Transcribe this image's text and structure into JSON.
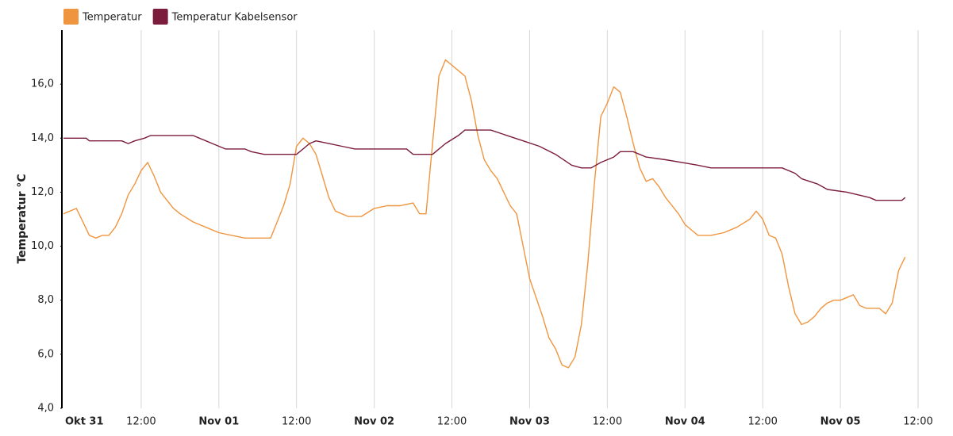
{
  "chart_data": {
    "type": "line",
    "ylabel": "Temperatur °C",
    "legend": "top-left",
    "grid": true,
    "xlim": [
      0,
      132
    ],
    "xticks": [
      {
        "value": 0,
        "label": "Okt 31"
      },
      {
        "value": 12,
        "label": "12:00"
      },
      {
        "value": 24,
        "label": "Nov 01"
      },
      {
        "value": 36,
        "label": "12:00"
      },
      {
        "value": 48,
        "label": "Nov 02"
      },
      {
        "value": 60,
        "label": "12:00"
      },
      {
        "value": 72,
        "label": "Nov 03"
      },
      {
        "value": 84,
        "label": "12:00"
      },
      {
        "value": 96,
        "label": "Nov 04"
      },
      {
        "value": 108,
        "label": "12:00"
      },
      {
        "value": 120,
        "label": "Nov 05"
      },
      {
        "value": 132,
        "label": "12:00"
      }
    ],
    "ylim": [
      4,
      18
    ],
    "yticks": [
      {
        "value": 4,
        "label": "4,0"
      },
      {
        "value": 6,
        "label": "6,0"
      },
      {
        "value": 8,
        "label": "8,0"
      },
      {
        "value": 10,
        "label": "10,0"
      },
      {
        "value": 12,
        "label": "12,0"
      },
      {
        "value": 14,
        "label": "14,0"
      },
      {
        "value": 16,
        "label": "16,0"
      }
    ],
    "series": [
      {
        "name": "Temperatur",
        "color": "#f0953f",
        "x": [
          0,
          2,
          3,
          4,
          5,
          6,
          7,
          8,
          9,
          10,
          11,
          12,
          13,
          14,
          15,
          16,
          17,
          18,
          20,
          22,
          24,
          26,
          28,
          30,
          32,
          33,
          34,
          35,
          36,
          37,
          38,
          39,
          40,
          41,
          42,
          44,
          46,
          48,
          50,
          52,
          54,
          55,
          56,
          57,
          58,
          59,
          60,
          61,
          62,
          63,
          64,
          65,
          66,
          67,
          68,
          69,
          70,
          71,
          72,
          73,
          74,
          75,
          76,
          77,
          78,
          79,
          80,
          81,
          82,
          83,
          84,
          85,
          86,
          87,
          88,
          89,
          90,
          91,
          92,
          93,
          94,
          95,
          96,
          97,
          98,
          100,
          102,
          104,
          106,
          107,
          108,
          109,
          110,
          111,
          112,
          113,
          114,
          115,
          116,
          117,
          118,
          119,
          120,
          121,
          122,
          123,
          124,
          125,
          126,
          127,
          128,
          129,
          130
        ],
        "values": [
          11.2,
          11.4,
          10.9,
          10.4,
          10.3,
          10.4,
          10.4,
          10.7,
          11.2,
          11.9,
          12.3,
          12.8,
          13.1,
          12.6,
          12.0,
          11.7,
          11.4,
          11.2,
          10.9,
          10.7,
          10.5,
          10.4,
          10.3,
          10.3,
          10.3,
          10.9,
          11.5,
          12.3,
          13.7,
          14.0,
          13.8,
          13.4,
          12.6,
          11.8,
          11.3,
          11.1,
          11.1,
          11.4,
          11.5,
          11.5,
          11.6,
          11.2,
          11.2,
          13.8,
          16.3,
          16.9,
          16.7,
          16.5,
          16.3,
          15.4,
          14.1,
          13.2,
          12.8,
          12.5,
          12.0,
          11.5,
          11.2,
          10.0,
          8.8,
          8.1,
          7.4,
          6.6,
          6.2,
          5.6,
          5.5,
          5.9,
          7.1,
          9.4,
          12.3,
          14.8,
          15.3,
          15.9,
          15.7,
          14.8,
          13.8,
          12.9,
          12.4,
          12.5,
          12.2,
          11.8,
          11.5,
          11.2,
          10.8,
          10.6,
          10.4,
          10.4,
          10.5,
          10.7,
          11.0,
          11.3,
          11.0,
          10.4,
          10.3,
          9.7,
          8.5,
          7.5,
          7.1,
          7.2,
          7.4,
          7.7,
          7.9,
          8.0,
          8.0,
          8.1,
          8.2,
          7.8,
          7.7,
          7.7,
          7.7,
          7.5,
          7.9,
          9.1,
          9.6
        ]
      },
      {
        "name": "Temperatur Kabelsensor",
        "color": "#7b1c3c",
        "x": [
          0,
          3.5,
          4,
          9,
          10,
          11,
          12.5,
          13.5,
          20,
          21,
          22,
          23,
          24,
          25,
          28,
          29,
          31,
          36,
          37,
          38,
          39,
          41,
          43,
          45,
          53,
          54,
          57,
          59,
          61,
          62,
          66,
          68.5,
          71,
          73.5,
          76,
          78.5,
          80,
          81.5,
          83,
          85,
          86,
          88,
          90,
          93,
          95.5,
          98,
          100,
          111,
          113,
          114,
          116.5,
          118,
          121,
          124.5,
          125.5,
          129.5,
          130
        ],
        "values": [
          14.0,
          14.0,
          13.9,
          13.9,
          13.8,
          13.9,
          14.0,
          14.1,
          14.1,
          14.0,
          13.9,
          13.8,
          13.7,
          13.6,
          13.6,
          13.5,
          13.4,
          13.4,
          13.6,
          13.8,
          13.9,
          13.8,
          13.7,
          13.6,
          13.6,
          13.4,
          13.4,
          13.8,
          14.1,
          14.3,
          14.3,
          14.1,
          13.9,
          13.7,
          13.4,
          13.0,
          12.9,
          12.9,
          13.1,
          13.3,
          13.5,
          13.5,
          13.3,
          13.2,
          13.1,
          13.0,
          12.9,
          12.9,
          12.7,
          12.5,
          12.3,
          12.1,
          12.0,
          11.8,
          11.7,
          11.7,
          11.8
        ]
      }
    ]
  }
}
